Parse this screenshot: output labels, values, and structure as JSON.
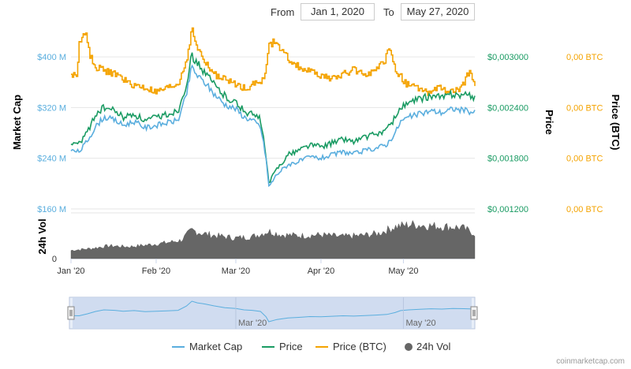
{
  "range_selector": {
    "from_label": "From",
    "from_value": "Jan 1, 2020",
    "to_label": "To",
    "to_value": "May 27, 2020"
  },
  "footer": "coinmarketcap.com",
  "colors": {
    "market_cap": "#5aaede",
    "price": "#1a9b63",
    "price_btc": "#f4a300",
    "volume": "#666666",
    "navigator_fill": "#c9d7ee"
  },
  "chart_data": {
    "type": "line",
    "x_start": "2020-01-01",
    "x_end": "2020-05-27",
    "x_ticks": [
      {
        "date": "2020-01-01",
        "label": "Jan '20"
      },
      {
        "date": "2020-02-01",
        "label": "Feb '20"
      },
      {
        "date": "2020-03-01",
        "label": "Mar '20"
      },
      {
        "date": "2020-04-01",
        "label": "Apr '20"
      },
      {
        "date": "2020-05-01",
        "label": "May '20"
      }
    ],
    "navigator_ticks": [
      "Mar '20",
      "May '20"
    ],
    "axes": {
      "market_cap": {
        "title": "Market Cap",
        "ticks": [
          "$160 M",
          "$240 M",
          "$320 M",
          "$400 M"
        ],
        "ylim": [
          160,
          440
        ]
      },
      "price": {
        "title": "Price",
        "ticks": [
          "$0,001200",
          "$0,001800",
          "$0,002400",
          "$0,003000"
        ],
        "ylim": [
          0.0012,
          0.0033
        ]
      },
      "price_btc": {
        "title": "Price (BTC)",
        "ticks": [
          "0,00 BTC",
          "0,00 BTC",
          "0,00 BTC",
          "0,00 BTC"
        ]
      },
      "volume": {
        "title": "24h Vol",
        "ticks": [
          "0"
        ]
      }
    },
    "series": [
      {
        "name": "Market Cap",
        "points": [
          [
            "2020-01-01",
            252
          ],
          [
            "2020-01-04",
            250
          ],
          [
            "2020-01-07",
            268
          ],
          [
            "2020-01-10",
            290
          ],
          [
            "2020-01-13",
            305
          ],
          [
            "2020-01-17",
            300
          ],
          [
            "2020-01-20",
            292
          ],
          [
            "2020-01-24",
            298
          ],
          [
            "2020-01-28",
            288
          ],
          [
            "2020-02-01",
            292
          ],
          [
            "2020-02-05",
            296
          ],
          [
            "2020-02-09",
            300
          ],
          [
            "2020-02-12",
            340
          ],
          [
            "2020-02-14",
            385
          ],
          [
            "2020-02-16",
            370
          ],
          [
            "2020-02-19",
            358
          ],
          [
            "2020-02-22",
            342
          ],
          [
            "2020-02-26",
            325
          ],
          [
            "2020-03-01",
            318
          ],
          [
            "2020-03-04",
            305
          ],
          [
            "2020-03-07",
            300
          ],
          [
            "2020-03-10",
            290
          ],
          [
            "2020-03-12",
            240
          ],
          [
            "2020-03-13",
            195
          ],
          [
            "2020-03-16",
            215
          ],
          [
            "2020-03-20",
            230
          ],
          [
            "2020-03-24",
            235
          ],
          [
            "2020-03-28",
            242
          ],
          [
            "2020-04-01",
            240
          ],
          [
            "2020-04-05",
            245
          ],
          [
            "2020-04-09",
            250
          ],
          [
            "2020-04-13",
            247
          ],
          [
            "2020-04-17",
            252
          ],
          [
            "2020-04-21",
            256
          ],
          [
            "2020-04-25",
            262
          ],
          [
            "2020-04-28",
            280
          ],
          [
            "2020-04-30",
            298
          ],
          [
            "2020-05-03",
            305
          ],
          [
            "2020-05-07",
            310
          ],
          [
            "2020-05-11",
            315
          ],
          [
            "2020-05-15",
            312
          ],
          [
            "2020-05-19",
            318
          ],
          [
            "2020-05-23",
            316
          ],
          [
            "2020-05-27",
            312
          ]
        ]
      },
      {
        "name": "Price",
        "points": [
          [
            "2020-01-01",
            0.00198
          ],
          [
            "2020-01-04",
            0.00197
          ],
          [
            "2020-01-07",
            0.00212
          ],
          [
            "2020-01-10",
            0.00232
          ],
          [
            "2020-01-13",
            0.0024
          ],
          [
            "2020-01-17",
            0.00236
          ],
          [
            "2020-01-20",
            0.00228
          ],
          [
            "2020-01-24",
            0.00232
          ],
          [
            "2020-01-28",
            0.00224
          ],
          [
            "2020-02-01",
            0.00228
          ],
          [
            "2020-02-05",
            0.00232
          ],
          [
            "2020-02-09",
            0.00236
          ],
          [
            "2020-02-12",
            0.00268
          ],
          [
            "2020-02-14",
            0.00302
          ],
          [
            "2020-02-16",
            0.00292
          ],
          [
            "2020-02-19",
            0.0028
          ],
          [
            "2020-02-22",
            0.00268
          ],
          [
            "2020-02-26",
            0.00254
          ],
          [
            "2020-03-01",
            0.00246
          ],
          [
            "2020-03-04",
            0.00236
          ],
          [
            "2020-03-07",
            0.00232
          ],
          [
            "2020-03-10",
            0.00226
          ],
          [
            "2020-03-12",
            0.00182
          ],
          [
            "2020-03-13",
            0.0015
          ],
          [
            "2020-03-16",
            0.00168
          ],
          [
            "2020-03-20",
            0.00184
          ],
          [
            "2020-03-24",
            0.0019
          ],
          [
            "2020-03-28",
            0.00196
          ],
          [
            "2020-04-01",
            0.00194
          ],
          [
            "2020-04-05",
            0.00198
          ],
          [
            "2020-04-09",
            0.00203
          ],
          [
            "2020-04-13",
            0.002
          ],
          [
            "2020-04-17",
            0.00205
          ],
          [
            "2020-04-21",
            0.00208
          ],
          [
            "2020-04-25",
            0.00214
          ],
          [
            "2020-04-28",
            0.00228
          ],
          [
            "2020-04-30",
            0.0024
          ],
          [
            "2020-05-03",
            0.00245
          ],
          [
            "2020-05-07",
            0.0025
          ],
          [
            "2020-05-11",
            0.00254
          ],
          [
            "2020-05-15",
            0.00252
          ],
          [
            "2020-05-19",
            0.00256
          ],
          [
            "2020-05-23",
            0.00255
          ],
          [
            "2020-05-27",
            0.00252
          ]
        ]
      },
      {
        "name": "Price (BTC)",
        "points": [
          [
            "2020-01-01",
            0.00278
          ],
          [
            "2020-01-03",
            0.00278
          ],
          [
            "2020-01-04",
            0.00318
          ],
          [
            "2020-01-06",
            0.0033
          ],
          [
            "2020-01-08",
            0.003
          ],
          [
            "2020-01-10",
            0.00288
          ],
          [
            "2020-01-14",
            0.00283
          ],
          [
            "2020-01-18",
            0.00278
          ],
          [
            "2020-01-22",
            0.00268
          ],
          [
            "2020-01-28",
            0.00263
          ],
          [
            "2020-02-01",
            0.00258
          ],
          [
            "2020-02-05",
            0.00263
          ],
          [
            "2020-02-09",
            0.00268
          ],
          [
            "2020-02-12",
            0.00298
          ],
          [
            "2020-02-14",
            0.00332
          ],
          [
            "2020-02-16",
            0.0031
          ],
          [
            "2020-02-19",
            0.00292
          ],
          [
            "2020-02-22",
            0.0028
          ],
          [
            "2020-02-26",
            0.00273
          ],
          [
            "2020-03-01",
            0.00268
          ],
          [
            "2020-03-04",
            0.00263
          ],
          [
            "2020-03-08",
            0.00268
          ],
          [
            "2020-03-11",
            0.00273
          ],
          [
            "2020-03-13",
            0.00312
          ],
          [
            "2020-03-15",
            0.00318
          ],
          [
            "2020-03-18",
            0.00305
          ],
          [
            "2020-03-22",
            0.00292
          ],
          [
            "2020-03-26",
            0.00285
          ],
          [
            "2020-04-01",
            0.00278
          ],
          [
            "2020-04-05",
            0.00273
          ],
          [
            "2020-04-09",
            0.0028
          ],
          [
            "2020-04-13",
            0.00285
          ],
          [
            "2020-04-17",
            0.0028
          ],
          [
            "2020-04-21",
            0.00283
          ],
          [
            "2020-04-24",
            0.00295
          ],
          [
            "2020-04-26",
            0.0031
          ],
          [
            "2020-04-28",
            0.00285
          ],
          [
            "2020-05-02",
            0.00268
          ],
          [
            "2020-05-06",
            0.00263
          ],
          [
            "2020-05-10",
            0.00258
          ],
          [
            "2020-05-14",
            0.00263
          ],
          [
            "2020-05-18",
            0.00258
          ],
          [
            "2020-05-22",
            0.00262
          ],
          [
            "2020-05-25",
            0.00285
          ],
          [
            "2020-05-27",
            0.00268
          ]
        ]
      },
      {
        "name": "24h Vol",
        "points": [
          [
            "2020-01-01",
            0.18
          ],
          [
            "2020-01-08",
            0.22
          ],
          [
            "2020-01-15",
            0.28
          ],
          [
            "2020-01-22",
            0.26
          ],
          [
            "2020-01-29",
            0.3
          ],
          [
            "2020-02-05",
            0.35
          ],
          [
            "2020-02-10",
            0.4
          ],
          [
            "2020-02-14",
            0.62
          ],
          [
            "2020-02-18",
            0.55
          ],
          [
            "2020-02-23",
            0.5
          ],
          [
            "2020-03-01",
            0.45
          ],
          [
            "2020-03-07",
            0.48
          ],
          [
            "2020-03-13",
            0.6
          ],
          [
            "2020-03-18",
            0.52
          ],
          [
            "2020-03-25",
            0.5
          ],
          [
            "2020-04-01",
            0.52
          ],
          [
            "2020-04-08",
            0.48
          ],
          [
            "2020-04-15",
            0.5
          ],
          [
            "2020-04-22",
            0.55
          ],
          [
            "2020-04-28",
            0.7
          ],
          [
            "2020-05-04",
            0.75
          ],
          [
            "2020-05-10",
            0.72
          ],
          [
            "2020-05-16",
            0.7
          ],
          [
            "2020-05-22",
            0.68
          ],
          [
            "2020-05-27",
            0.55
          ]
        ]
      }
    ]
  }
}
